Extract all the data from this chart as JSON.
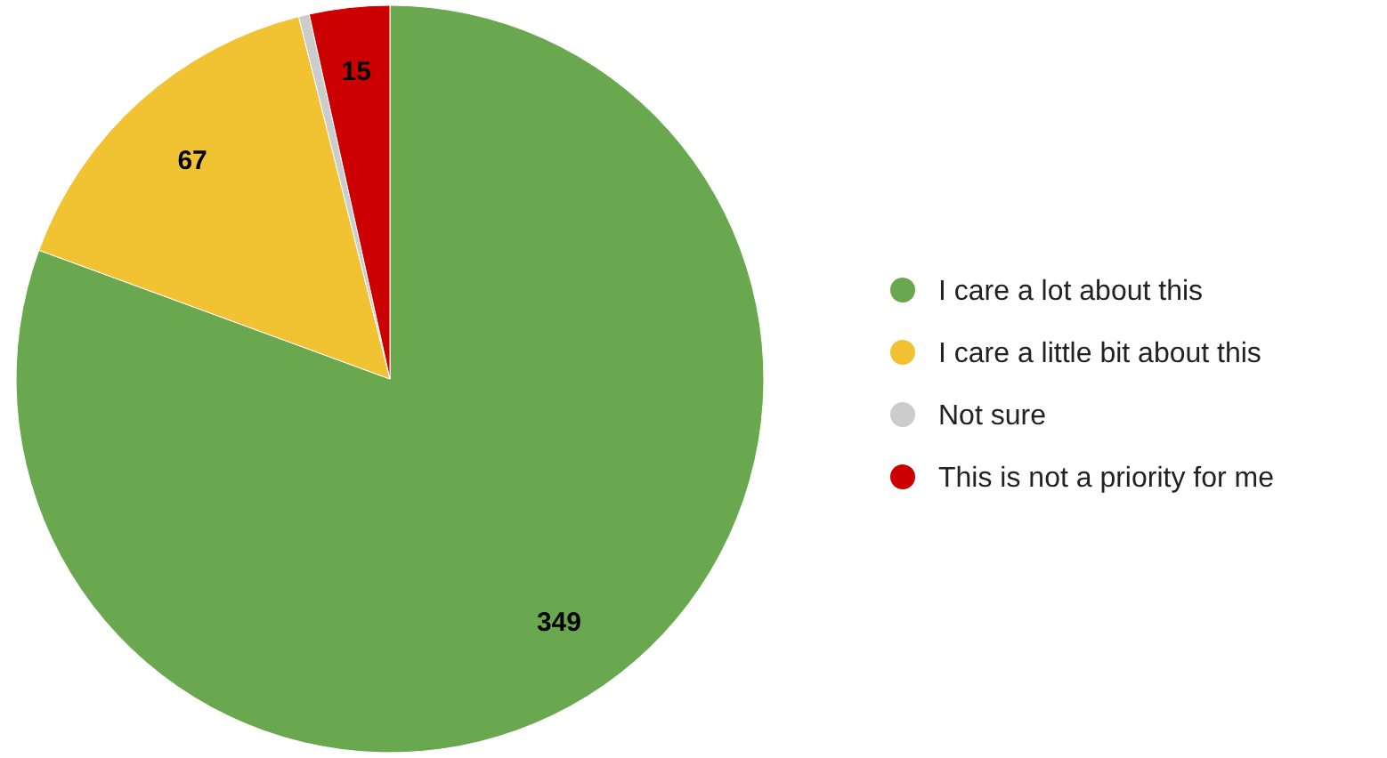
{
  "chart_data": {
    "type": "pie",
    "categories": [
      "I care a lot about this",
      "I care a little bit about this",
      "Not sure",
      "This is not a priority for me"
    ],
    "values": [
      349,
      67,
      2,
      15
    ],
    "colors": [
      "#6aa84f",
      "#f1c232",
      "#cccccc",
      "#cc0000"
    ],
    "value_labels": [
      "349",
      "67",
      null,
      "15"
    ],
    "legend": "right"
  }
}
